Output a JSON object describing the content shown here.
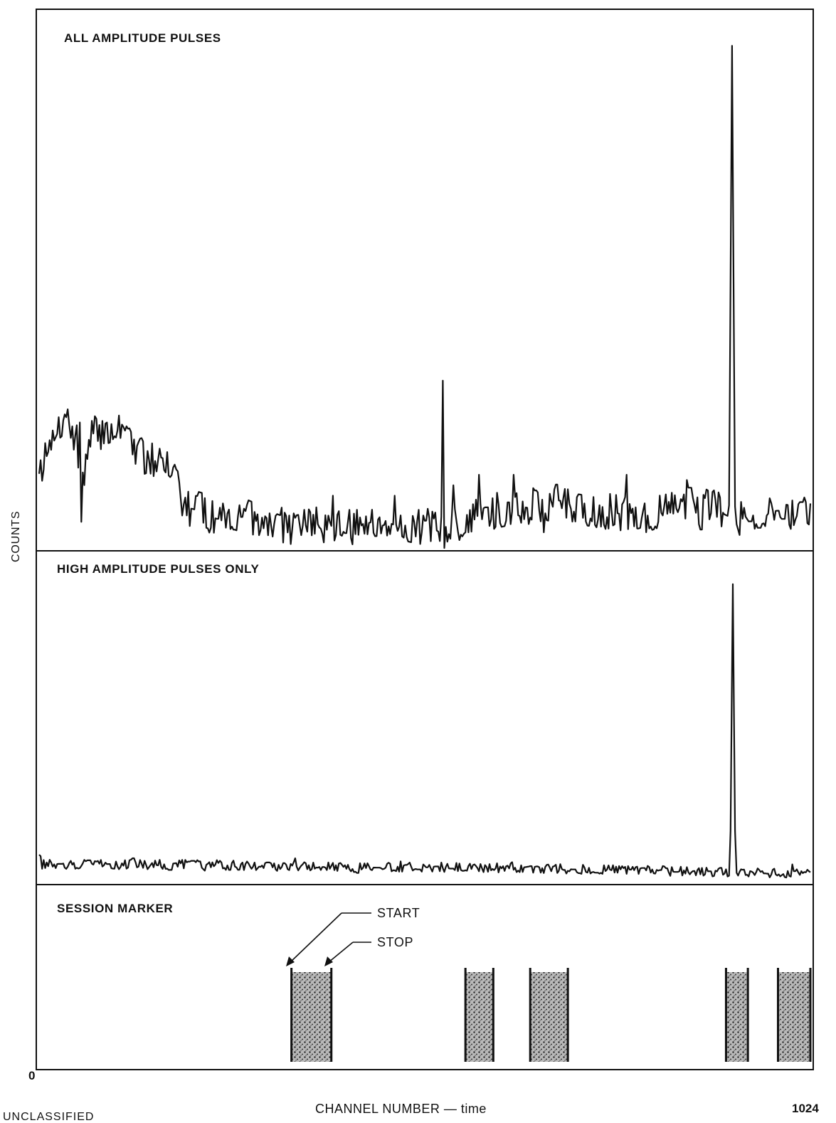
{
  "chart_data": {
    "type": "line",
    "ylabel": "COUNTS",
    "xlabel": "CHANNEL NUMBER — time",
    "xlim": [
      0,
      1024
    ],
    "x_tick_labels": [
      "0",
      "1024"
    ],
    "panels": [
      {
        "id": "all",
        "title": "ALL AMPLITUDE PULSES",
        "ylim": [
          0,
          100
        ],
        "baseline": 10,
        "noise": 3.5,
        "segments": [
          [
            0,
            16
          ],
          [
            6,
            16
          ],
          [
            33,
            25
          ],
          [
            50,
            20
          ],
          [
            55,
            14
          ],
          [
            65,
            17
          ],
          [
            70,
            22
          ],
          [
            90,
            22
          ],
          [
            110,
            23
          ],
          [
            125,
            18
          ],
          [
            140,
            16
          ],
          [
            160,
            17
          ],
          [
            185,
            16
          ],
          [
            190,
            8
          ],
          [
            230,
            6
          ],
          [
            260,
            6
          ],
          [
            290,
            4
          ],
          [
            310,
            5
          ],
          [
            330,
            4
          ],
          [
            360,
            5
          ],
          [
            390,
            4
          ],
          [
            420,
            4
          ],
          [
            440,
            5
          ],
          [
            480,
            5
          ],
          [
            510,
            4
          ],
          [
            540,
            4
          ],
          [
            560,
            4
          ],
          [
            580,
            7
          ],
          [
            600,
            7
          ],
          [
            630,
            8
          ],
          [
            700,
            8
          ],
          [
            750,
            7
          ],
          [
            800,
            6
          ],
          [
            850,
            8
          ],
          [
            900,
            8
          ],
          [
            915,
            7
          ],
          [
            950,
            7
          ],
          [
            1024,
            7
          ]
        ],
        "spikes": [
          {
            "x": 35,
            "y": 25
          },
          {
            "x": 53,
            "y": 24
          },
          {
            "x": 90,
            "y": 24
          },
          {
            "x": 136,
            "y": 21
          },
          {
            "x": 150,
            "y": 20
          },
          {
            "x": 160,
            "y": 19
          },
          {
            "x": 390,
            "y": 10
          },
          {
            "x": 472,
            "y": 10
          },
          {
            "x": 535,
            "y": 32
          },
          {
            "x": 550,
            "y": 12
          },
          {
            "x": 583,
            "y": 14
          },
          {
            "x": 630,
            "y": 14
          },
          {
            "x": 660,
            "y": 11
          },
          {
            "x": 780,
            "y": 14
          },
          {
            "x": 860,
            "y": 13
          }
        ],
        "dips": [
          {
            "x": 55,
            "y": 5
          },
          {
            "x": 537,
            "y": 0
          },
          {
            "x": 570,
            "y": 3
          },
          {
            "x": 670,
            "y": 3
          }
        ],
        "peaks": [
          {
            "x": 920,
            "y": 96,
            "width": 8
          }
        ],
        "seed": 7
      },
      {
        "id": "high",
        "title": "HIGH AMPLITUDE PULSES ONLY",
        "ylim": [
          0,
          100
        ],
        "baseline": 4.5,
        "noise": 1.6,
        "segments": [
          [
            0,
            9
          ],
          [
            4,
            5
          ],
          [
            200,
            5
          ],
          [
            400,
            4
          ],
          [
            600,
            4
          ],
          [
            800,
            3
          ],
          [
            1024,
            2
          ]
        ],
        "spikes": [
          {
            "x": 340,
            "y": 7
          },
          {
            "x": 480,
            "y": 6
          },
          {
            "x": 1000,
            "y": 5
          }
        ],
        "dips": [],
        "peaks": [
          {
            "x": 921,
            "y": 97,
            "width": 7
          }
        ],
        "seed": 13
      }
    ],
    "session_marker": {
      "title": "SESSION MARKER",
      "annotations": [
        "START",
        "STOP"
      ],
      "sessions": [
        {
          "start": 335,
          "stop": 388
        },
        {
          "start": 566,
          "stop": 603
        },
        {
          "start": 652,
          "stop": 702
        },
        {
          "start": 912,
          "stop": 941
        },
        {
          "start": 981,
          "stop": 1024
        }
      ],
      "colors": {
        "fill": "#8a8a8a",
        "edge": "#111111"
      }
    }
  },
  "footer": "UNCLASSIFIED"
}
